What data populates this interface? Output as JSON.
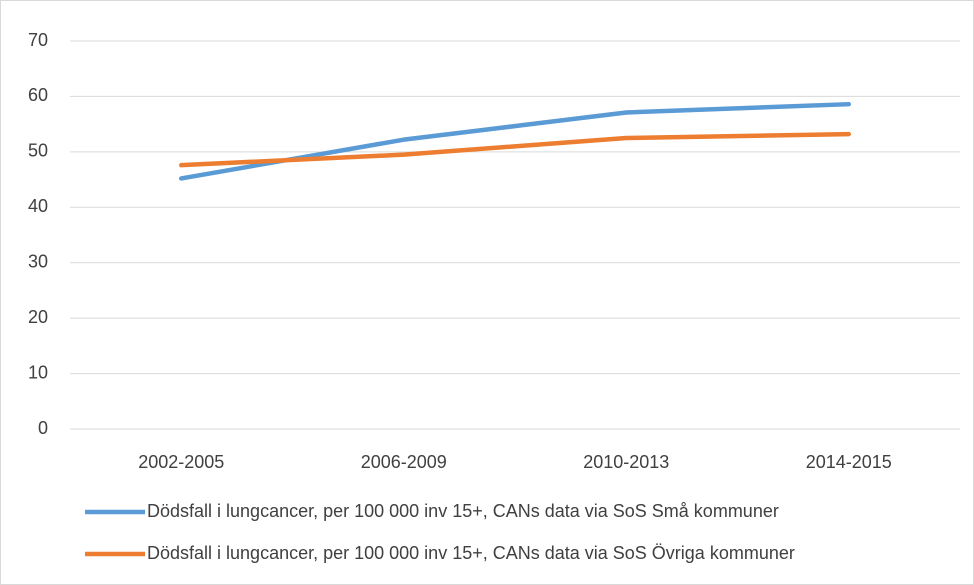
{
  "chart_data": {
    "type": "line",
    "categories": [
      "2002-2005",
      "2006-2009",
      "2010-2013",
      "2014-2015"
    ],
    "series": [
      {
        "name": "Dödsfall i lungcancer, per 100 000 inv 15+, CANs data via SoS Små kommuner",
        "color": "#5b9bd5",
        "values": [
          45.2,
          52.2,
          57.1,
          58.6
        ]
      },
      {
        "name": "Dödsfall i lungcancer, per 100 000 inv 15+, CANs data via SoS Övriga kommuner",
        "color": "#ed7d31",
        "values": [
          47.6,
          49.5,
          52.5,
          53.2
        ]
      }
    ],
    "ylim": [
      0,
      70
    ],
    "yticks": [
      0,
      10,
      20,
      30,
      40,
      50,
      60,
      70
    ],
    "grid": true,
    "legend": "bottom"
  }
}
